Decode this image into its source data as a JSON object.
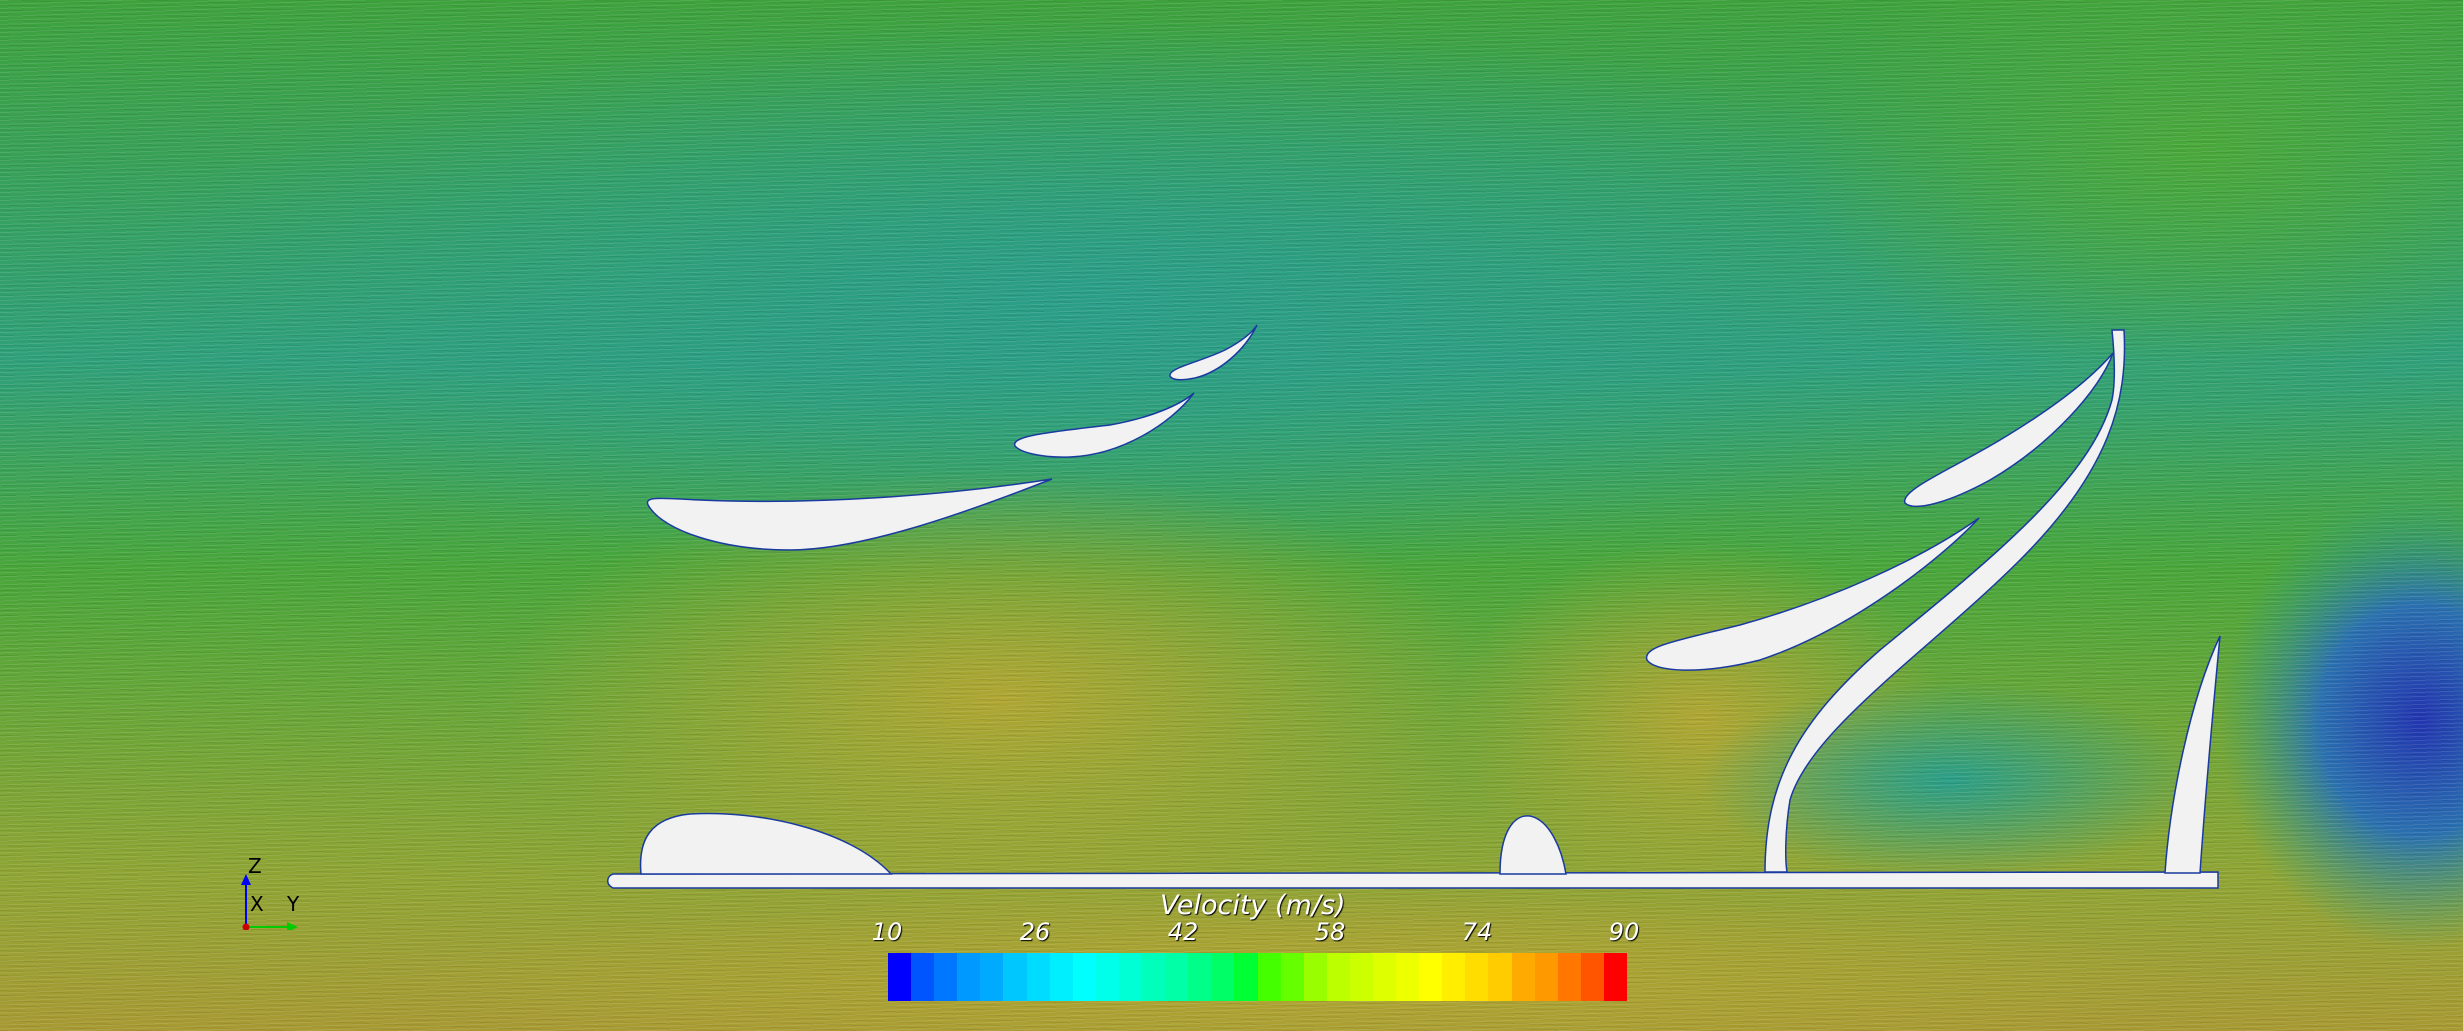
{
  "colorbar": {
    "title": "Velocity (m/s)",
    "ticks": [
      "10",
      "26",
      "42",
      "58",
      "74",
      "90"
    ],
    "range": [
      10,
      90
    ],
    "colors": [
      "#0000ff",
      "#0055ff",
      "#0077ff",
      "#0099ff",
      "#00aaff",
      "#00c8ff",
      "#00dcff",
      "#00efff",
      "#00ffff",
      "#00ffea",
      "#00ffd5",
      "#00ffbb",
      "#00ffa6",
      "#00ff88",
      "#00ff66",
      "#00ff33",
      "#44ff00",
      "#66ff00",
      "#99ff00",
      "#bbff00",
      "#ccff00",
      "#ddff00",
      "#eeff00",
      "#ffff00",
      "#ffee00",
      "#ffdd00",
      "#ffcc00",
      "#ffaa00",
      "#ff9900",
      "#ff7700",
      "#ff5500",
      "#ff0000"
    ]
  },
  "axes": {
    "z": "Z",
    "x": "X",
    "y": "Y"
  }
}
